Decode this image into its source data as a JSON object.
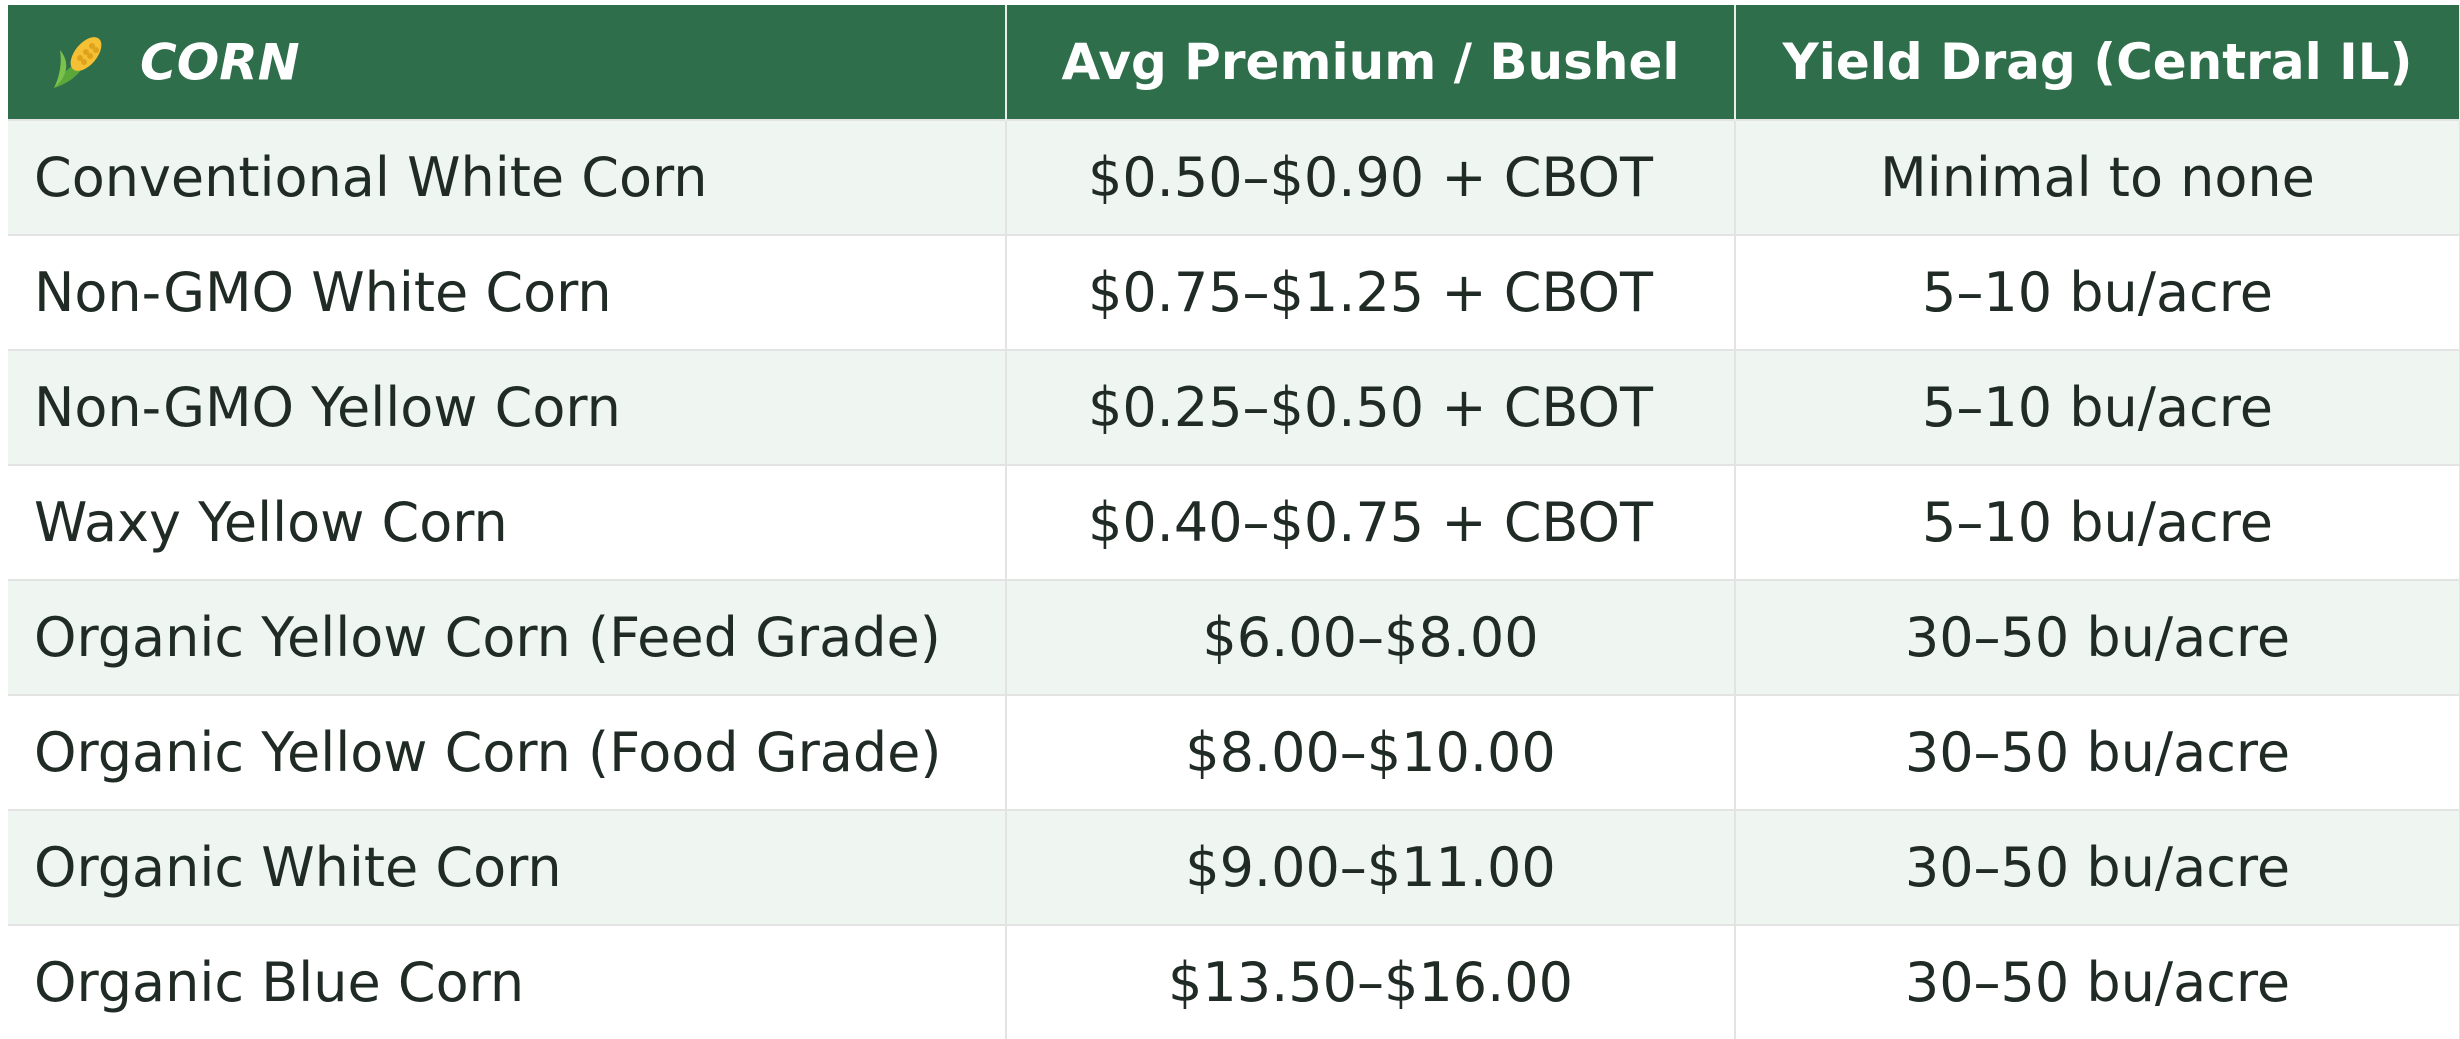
{
  "header": [
    "CORN",
    "Avg Premium / Bushel",
    "Yield Drag (Central IL)"
  ],
  "table": {
    "rows": [
      [
        "Conventional White Corn",
        "$0.50–$0.90 + CBOT",
        "Minimal to none"
      ],
      [
        "Non-GMO White Corn",
        "$0.75–$1.25 + CBOT",
        "5–10 bu/acre"
      ],
      [
        "Non-GMO Yellow Corn",
        "$0.25–$0.50 + CBOT",
        "5–10 bu/acre"
      ],
      [
        "Waxy Yellow Corn",
        "$0.40–$0.75 + CBOT",
        "5–10 bu/acre"
      ],
      [
        "Organic Yellow Corn (Feed Grade)",
        "$6.00–$8.00",
        "30–50 bu/acre"
      ],
      [
        "Organic Yellow Corn (Food Grade)",
        "$8.00–$10.00",
        "30–50 bu/acre"
      ],
      [
        "Organic White Corn",
        "$9.00–$11.00",
        "30–50 bu/acre"
      ],
      [
        "Organic Blue Corn",
        "$13.50–$16.00",
        "30–50 bu/acre"
      ]
    ]
  }
}
